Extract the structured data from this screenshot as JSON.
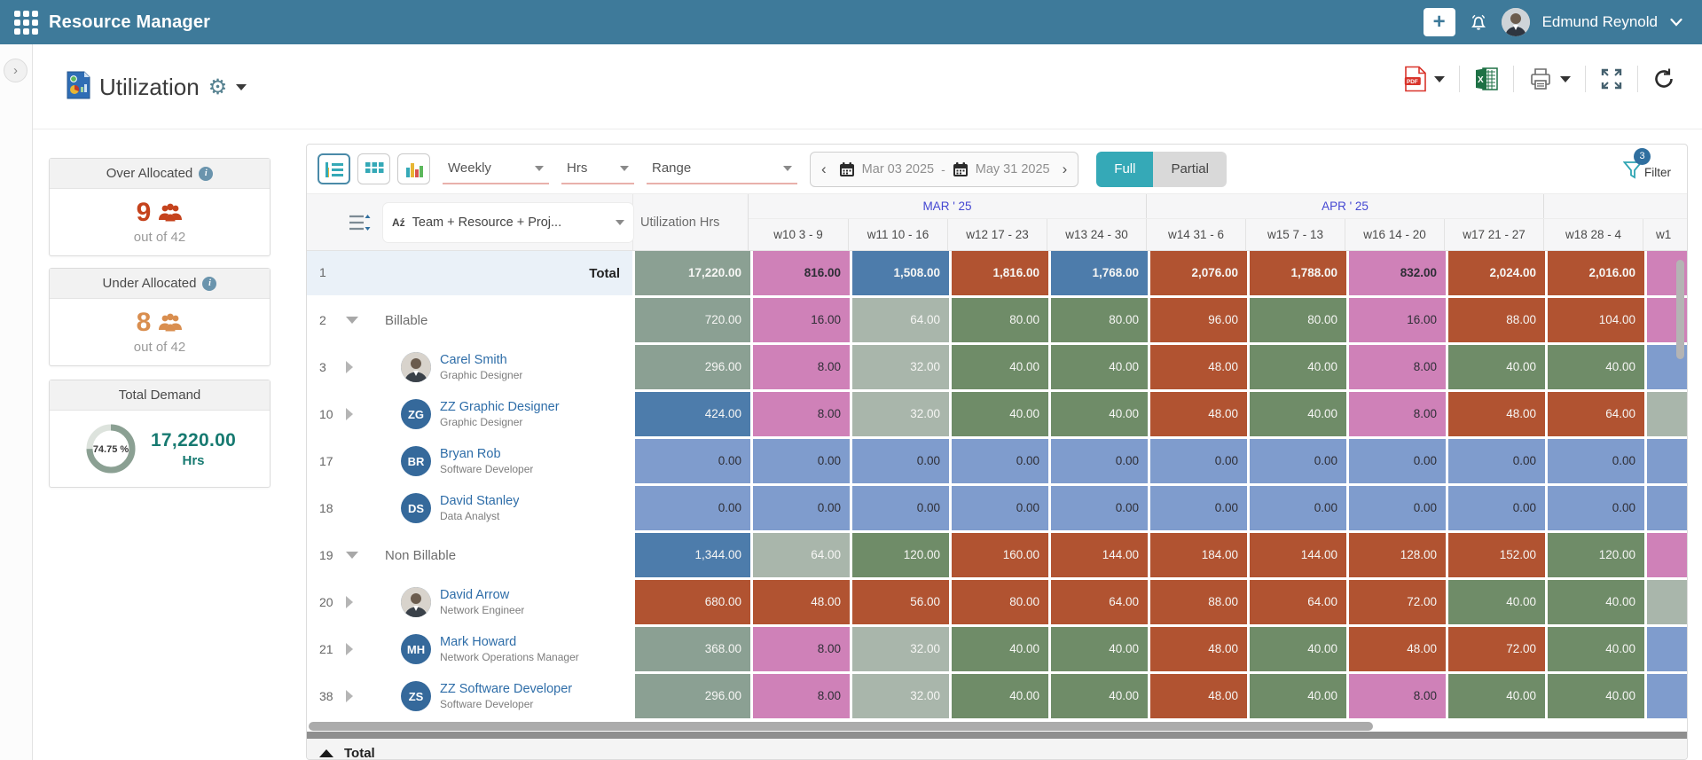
{
  "app": {
    "title": "Resource Manager",
    "user": "Edmund Reynold",
    "header_color": "#3e7a9a",
    "icons": [
      "apps-grid-icon",
      "add-icon",
      "notifications-bell-icon",
      "user-avatar",
      "chevron-down-icon"
    ]
  },
  "page": {
    "title": "Utilization",
    "title_icons": [
      "report-document-icon",
      "gear-icon",
      "caret-down-icon"
    ],
    "export_icons": [
      "pdf-export-icon",
      "excel-export-icon",
      "print-icon",
      "fullscreen-icon",
      "refresh-icon"
    ]
  },
  "sidebar": {
    "over_allocated": {
      "title": "Over Allocated",
      "value": "9",
      "sub": "out of 42",
      "color": "#c5431d"
    },
    "under_allocated": {
      "title": "Under Allocated",
      "value": "8",
      "sub": "out of 42",
      "color": "#d98e4f"
    },
    "total_demand": {
      "title": "Total Demand",
      "percent": "74.75 %",
      "percent_value": 74.75,
      "value": "17,220.00",
      "unit": "Hrs",
      "color": "#177a71"
    }
  },
  "toolbar": {
    "view_modes": [
      "chart-grid-view-icon",
      "grid-view-icon",
      "bar-chart-view-icon"
    ],
    "period_select": "Weekly",
    "unit_select": "Hrs",
    "range_select": "Range",
    "date_from": "Mar 03 2025",
    "date_dash": "-",
    "date_to": "May 31 2025",
    "full_label": "Full",
    "partial_label": "Partial",
    "filter": {
      "label": "Filter",
      "badge": "3",
      "accent": "#2fa5b3"
    }
  },
  "grid": {
    "group_col": "Team + Resource + Proj...",
    "util_col": "Utilization Hrs",
    "months": [
      {
        "label": "MAR ' 25",
        "cols": 4
      },
      {
        "label": "APR ' 25",
        "cols": 4
      },
      {
        "label": "",
        "cols": 2
      }
    ],
    "weeks": [
      "w10 3 - 9",
      "w11 10 - 16",
      "w12 17 - 23",
      "w13 24 - 30",
      "w14 31 - 6",
      "w15 7 - 13",
      "w16 14 - 20",
      "w17 21 - 27",
      "w18 28 - 4",
      "w1"
    ],
    "palette": {
      "G": "#6f8c68",
      "R": "#b15331",
      "P": "#cf81b8",
      "B": "#4d7cab",
      "L": "#a9b6ab",
      "W": "#7f9ccd",
      "S": "#8ba093"
    },
    "dark_text_codes": [
      "P",
      "W"
    ],
    "rows": [
      {
        "num": "1",
        "kind": "total",
        "label": "Total",
        "util": {
          "v": "17,220.00",
          "c": "S"
        },
        "cells": [
          {
            "v": "816.00",
            "c": "P"
          },
          {
            "v": "1,508.00",
            "c": "B"
          },
          {
            "v": "1,816.00",
            "c": "R"
          },
          {
            "v": "1,768.00",
            "c": "B"
          },
          {
            "v": "2,076.00",
            "c": "R"
          },
          {
            "v": "1,788.00",
            "c": "R"
          },
          {
            "v": "832.00",
            "c": "P"
          },
          {
            "v": "2,024.00",
            "c": "R"
          },
          {
            "v": "2,016.00",
            "c": "R"
          }
        ],
        "sliver": "P"
      },
      {
        "num": "2",
        "kind": "group",
        "arrow": "down",
        "label": "Billable",
        "util": {
          "v": "720.00",
          "c": "S"
        },
        "cells": [
          {
            "v": "16.00",
            "c": "P"
          },
          {
            "v": "64.00",
            "c": "L"
          },
          {
            "v": "80.00",
            "c": "G"
          },
          {
            "v": "80.00",
            "c": "G"
          },
          {
            "v": "96.00",
            "c": "R"
          },
          {
            "v": "80.00",
            "c": "G"
          },
          {
            "v": "16.00",
            "c": "P"
          },
          {
            "v": "88.00",
            "c": "R"
          },
          {
            "v": "104.00",
            "c": "R"
          }
        ],
        "sliver": "P"
      },
      {
        "num": "3",
        "kind": "person",
        "arrow": "right",
        "name": "Carel Smith",
        "role": "Graphic Designer",
        "avatar": {
          "type": "photo"
        },
        "util": {
          "v": "296.00",
          "c": "S"
        },
        "cells": [
          {
            "v": "8.00",
            "c": "P"
          },
          {
            "v": "32.00",
            "c": "L"
          },
          {
            "v": "40.00",
            "c": "G"
          },
          {
            "v": "40.00",
            "c": "G"
          },
          {
            "v": "48.00",
            "c": "R"
          },
          {
            "v": "40.00",
            "c": "G"
          },
          {
            "v": "8.00",
            "c": "P"
          },
          {
            "v": "40.00",
            "c": "G"
          },
          {
            "v": "40.00",
            "c": "G"
          }
        ],
        "sliver": "W"
      },
      {
        "num": "10",
        "kind": "person",
        "arrow": "right",
        "name": "ZZ Graphic Designer",
        "role": "Graphic Designer",
        "avatar": {
          "type": "initials",
          "text": "ZG"
        },
        "util": {
          "v": "424.00",
          "c": "B"
        },
        "cells": [
          {
            "v": "8.00",
            "c": "P"
          },
          {
            "v": "32.00",
            "c": "L"
          },
          {
            "v": "40.00",
            "c": "G"
          },
          {
            "v": "40.00",
            "c": "G"
          },
          {
            "v": "48.00",
            "c": "R"
          },
          {
            "v": "40.00",
            "c": "G"
          },
          {
            "v": "8.00",
            "c": "P"
          },
          {
            "v": "48.00",
            "c": "R"
          },
          {
            "v": "64.00",
            "c": "R"
          }
        ],
        "sliver": "L"
      },
      {
        "num": "17",
        "kind": "person",
        "arrow": null,
        "name": "Bryan Rob",
        "role": "Software Developer",
        "avatar": {
          "type": "initials",
          "text": "BR"
        },
        "util": {
          "v": "0.00",
          "c": "W"
        },
        "cells": [
          {
            "v": "0.00",
            "c": "W"
          },
          {
            "v": "0.00",
            "c": "W"
          },
          {
            "v": "0.00",
            "c": "W"
          },
          {
            "v": "0.00",
            "c": "W"
          },
          {
            "v": "0.00",
            "c": "W"
          },
          {
            "v": "0.00",
            "c": "W"
          },
          {
            "v": "0.00",
            "c": "W"
          },
          {
            "v": "0.00",
            "c": "W"
          },
          {
            "v": "0.00",
            "c": "W"
          }
        ],
        "sliver": "W"
      },
      {
        "num": "18",
        "kind": "person",
        "arrow": null,
        "name": "David Stanley",
        "role": "Data Analyst",
        "avatar": {
          "type": "initials",
          "text": "DS"
        },
        "util": {
          "v": "0.00",
          "c": "W"
        },
        "cells": [
          {
            "v": "0.00",
            "c": "W"
          },
          {
            "v": "0.00",
            "c": "W"
          },
          {
            "v": "0.00",
            "c": "W"
          },
          {
            "v": "0.00",
            "c": "W"
          },
          {
            "v": "0.00",
            "c": "W"
          },
          {
            "v": "0.00",
            "c": "W"
          },
          {
            "v": "0.00",
            "c": "W"
          },
          {
            "v": "0.00",
            "c": "W"
          },
          {
            "v": "0.00",
            "c": "W"
          }
        ],
        "sliver": "W"
      },
      {
        "num": "19",
        "kind": "group",
        "arrow": "down",
        "label": "Non Billable",
        "util": {
          "v": "1,344.00",
          "c": "B"
        },
        "cells": [
          {
            "v": "64.00",
            "c": "L"
          },
          {
            "v": "120.00",
            "c": "G"
          },
          {
            "v": "160.00",
            "c": "R"
          },
          {
            "v": "144.00",
            "c": "R"
          },
          {
            "v": "184.00",
            "c": "R"
          },
          {
            "v": "144.00",
            "c": "R"
          },
          {
            "v": "128.00",
            "c": "R"
          },
          {
            "v": "152.00",
            "c": "R"
          },
          {
            "v": "120.00",
            "c": "G"
          }
        ],
        "sliver": "P"
      },
      {
        "num": "20",
        "kind": "person",
        "arrow": "right",
        "name": "David Arrow",
        "role": "Network Engineer",
        "avatar": {
          "type": "photo"
        },
        "util": {
          "v": "680.00",
          "c": "R"
        },
        "cells": [
          {
            "v": "48.00",
            "c": "R"
          },
          {
            "v": "56.00",
            "c": "R"
          },
          {
            "v": "80.00",
            "c": "R"
          },
          {
            "v": "64.00",
            "c": "R"
          },
          {
            "v": "88.00",
            "c": "R"
          },
          {
            "v": "64.00",
            "c": "R"
          },
          {
            "v": "72.00",
            "c": "R"
          },
          {
            "v": "40.00",
            "c": "G"
          },
          {
            "v": "40.00",
            "c": "G"
          }
        ],
        "sliver": "L"
      },
      {
        "num": "21",
        "kind": "person",
        "arrow": "right",
        "name": "Mark Howard",
        "role": "Network Operations Manager",
        "avatar": {
          "type": "initials",
          "text": "MH"
        },
        "util": {
          "v": "368.00",
          "c": "S"
        },
        "cells": [
          {
            "v": "8.00",
            "c": "P"
          },
          {
            "v": "32.00",
            "c": "L"
          },
          {
            "v": "40.00",
            "c": "G"
          },
          {
            "v": "40.00",
            "c": "G"
          },
          {
            "v": "48.00",
            "c": "R"
          },
          {
            "v": "40.00",
            "c": "G"
          },
          {
            "v": "48.00",
            "c": "R"
          },
          {
            "v": "72.00",
            "c": "R"
          },
          {
            "v": "40.00",
            "c": "G"
          }
        ],
        "sliver": "W"
      },
      {
        "num": "38",
        "kind": "person",
        "arrow": "right",
        "name": "ZZ Software Developer",
        "role": "Software Developer",
        "avatar": {
          "type": "initials",
          "text": "ZS"
        },
        "util": {
          "v": "296.00",
          "c": "S"
        },
        "cells": [
          {
            "v": "8.00",
            "c": "P"
          },
          {
            "v": "32.00",
            "c": "L"
          },
          {
            "v": "40.00",
            "c": "G"
          },
          {
            "v": "40.00",
            "c": "G"
          },
          {
            "v": "48.00",
            "c": "R"
          },
          {
            "v": "40.00",
            "c": "G"
          },
          {
            "v": "8.00",
            "c": "P"
          },
          {
            "v": "40.00",
            "c": "G"
          },
          {
            "v": "40.00",
            "c": "G"
          }
        ],
        "sliver": "W"
      }
    ],
    "footer_total": "Total"
  }
}
